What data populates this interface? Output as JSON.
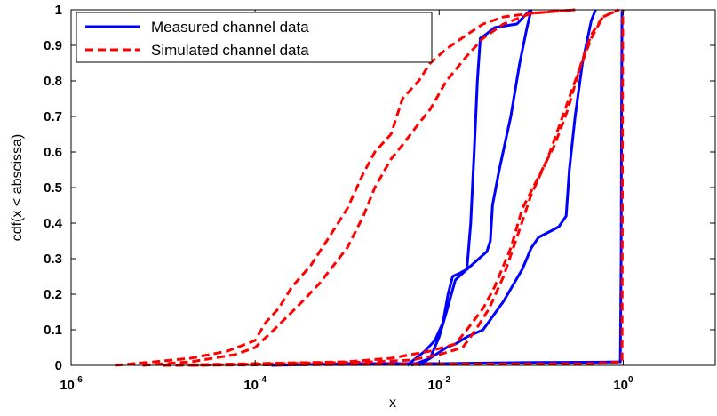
{
  "chart_data": {
    "type": "line",
    "xscale": "log",
    "xlim": [
      1e-06,
      10
    ],
    "ylim": [
      0,
      1
    ],
    "xlabel": "x",
    "ylabel": "cdf(x < abscissa)",
    "x_ticks": [
      {
        "base": "10",
        "exp": "-6",
        "value": 1e-06
      },
      {
        "base": "10",
        "exp": "-4",
        "value": 0.0001
      },
      {
        "base": "10",
        "exp": "-2",
        "value": 0.01
      },
      {
        "base": "10",
        "exp": "0",
        "value": 1
      }
    ],
    "y_ticks": [
      "0",
      "0.1",
      "0.2",
      "0.3",
      "0.4",
      "0.5",
      "0.6",
      "0.7",
      "0.8",
      "0.9",
      "1"
    ],
    "legend": {
      "placement": "top-left",
      "entries": [
        {
          "label": "Measured channel data",
          "color": "#0000ff",
          "style": "solid"
        },
        {
          "label": "Simulated channel data",
          "color": "#ff0000",
          "style": "dashed"
        }
      ]
    },
    "grid": false,
    "series": [
      {
        "group": "measured",
        "color": "#0000ff",
        "dash": "solid",
        "points": [
          [
            0.0045,
            0
          ],
          [
            0.005,
            0.01
          ],
          [
            0.007,
            0.04
          ],
          [
            0.009,
            0.07
          ],
          [
            0.011,
            0.12
          ],
          [
            0.0125,
            0.2
          ],
          [
            0.014,
            0.25
          ],
          [
            0.017,
            0.26
          ],
          [
            0.02,
            0.27
          ],
          [
            0.022,
            0.4
          ],
          [
            0.024,
            0.6
          ],
          [
            0.026,
            0.8
          ],
          [
            0.028,
            0.92
          ],
          [
            0.032,
            0.93
          ],
          [
            0.04,
            0.95
          ],
          [
            0.07,
            0.96
          ],
          [
            0.09,
            0.99
          ],
          [
            0.1,
            1
          ]
        ]
      },
      {
        "group": "measured",
        "color": "#0000ff",
        "dash": "solid",
        "points": [
          [
            0.006,
            0
          ],
          [
            0.008,
            0.02
          ],
          [
            0.01,
            0.08
          ],
          [
            0.012,
            0.15
          ],
          [
            0.015,
            0.24
          ],
          [
            0.02,
            0.27
          ],
          [
            0.027,
            0.3
          ],
          [
            0.033,
            0.32
          ],
          [
            0.036,
            0.35
          ],
          [
            0.038,
            0.45
          ],
          [
            0.045,
            0.55
          ],
          [
            0.06,
            0.7
          ],
          [
            0.075,
            0.85
          ],
          [
            0.09,
            0.95
          ],
          [
            0.1,
            1
          ]
        ]
      },
      {
        "group": "measured",
        "color": "#0000ff",
        "dash": "solid",
        "points": [
          [
            0.005,
            0
          ],
          [
            0.008,
            0.02
          ],
          [
            0.012,
            0.05
          ],
          [
            0.015,
            0.06
          ],
          [
            0.02,
            0.08
          ],
          [
            0.03,
            0.1
          ],
          [
            0.05,
            0.18
          ],
          [
            0.08,
            0.27
          ],
          [
            0.1,
            0.33
          ],
          [
            0.12,
            0.36
          ],
          [
            0.17,
            0.38
          ],
          [
            0.2,
            0.39
          ],
          [
            0.24,
            0.42
          ],
          [
            0.26,
            0.55
          ],
          [
            0.3,
            0.7
          ],
          [
            0.36,
            0.85
          ],
          [
            0.45,
            0.97
          ],
          [
            0.5,
            1
          ]
        ]
      },
      {
        "group": "measured",
        "color": "#0000ff",
        "dash": "solid",
        "points": [
          [
            0.00015,
            0
          ],
          [
            0.001,
            0.005
          ],
          [
            0.01,
            0.005
          ],
          [
            0.1,
            0.008
          ],
          [
            0.6,
            0.009
          ],
          [
            0.93,
            0.01
          ],
          [
            0.95,
            0.3
          ],
          [
            0.96,
            0.72
          ],
          [
            0.97,
            0.995
          ],
          [
            1.0,
            1
          ]
        ]
      },
      {
        "group": "simulated",
        "color": "#ff0000",
        "dash": "dashed",
        "points": [
          [
            3e-06,
            0
          ],
          [
            8e-06,
            0.01
          ],
          [
            2e-05,
            0.02
          ],
          [
            5e-05,
            0.04
          ],
          [
            0.0001,
            0.07
          ],
          [
            0.00013,
            0.12
          ],
          [
            0.00018,
            0.16
          ],
          [
            0.00025,
            0.22
          ],
          [
            0.0004,
            0.28
          ],
          [
            0.0006,
            0.35
          ],
          [
            0.001,
            0.44
          ],
          [
            0.0015,
            0.54
          ],
          [
            0.002,
            0.6
          ],
          [
            0.003,
            0.65
          ],
          [
            0.004,
            0.75
          ],
          [
            0.006,
            0.8
          ],
          [
            0.008,
            0.85
          ],
          [
            0.012,
            0.89
          ],
          [
            0.02,
            0.93
          ],
          [
            0.03,
            0.96
          ],
          [
            0.05,
            0.98
          ],
          [
            0.1,
            0.99
          ],
          [
            0.3,
            1
          ]
        ]
      },
      {
        "group": "simulated",
        "color": "#ff0000",
        "dash": "dashed",
        "points": [
          [
            6e-06,
            0
          ],
          [
            2e-05,
            0.01
          ],
          [
            6e-05,
            0.03
          ],
          [
            0.0001,
            0.05
          ],
          [
            0.00016,
            0.1
          ],
          [
            0.0003,
            0.17
          ],
          [
            0.0005,
            0.23
          ],
          [
            0.001,
            0.33
          ],
          [
            0.0015,
            0.42
          ],
          [
            0.002,
            0.5
          ],
          [
            0.003,
            0.58
          ],
          [
            0.004,
            0.62
          ],
          [
            0.006,
            0.68
          ],
          [
            0.008,
            0.72
          ],
          [
            0.012,
            0.8
          ],
          [
            0.02,
            0.87
          ],
          [
            0.03,
            0.92
          ],
          [
            0.05,
            0.96
          ],
          [
            0.1,
            0.99
          ],
          [
            0.3,
            1
          ]
        ]
      },
      {
        "group": "simulated",
        "color": "#ff0000",
        "dash": "dashed",
        "points": [
          [
            1e-05,
            0
          ],
          [
            0.0001,
            0.005
          ],
          [
            0.001,
            0.01
          ],
          [
            0.003,
            0.02
          ],
          [
            0.008,
            0.04
          ],
          [
            0.015,
            0.06
          ],
          [
            0.02,
            0.1
          ],
          [
            0.03,
            0.16
          ],
          [
            0.04,
            0.22
          ],
          [
            0.06,
            0.33
          ],
          [
            0.08,
            0.44
          ],
          [
            0.12,
            0.53
          ],
          [
            0.18,
            0.62
          ],
          [
            0.25,
            0.72
          ],
          [
            0.35,
            0.85
          ],
          [
            0.45,
            0.93
          ],
          [
            0.6,
            0.98
          ],
          [
            0.9,
            1
          ]
        ]
      },
      {
        "group": "simulated",
        "color": "#ff0000",
        "dash": "dashed",
        "points": [
          [
            2e-05,
            0
          ],
          [
            0.0002,
            0.005
          ],
          [
            0.002,
            0.01
          ],
          [
            0.005,
            0.015
          ],
          [
            0.01,
            0.03
          ],
          [
            0.018,
            0.05
          ],
          [
            0.025,
            0.1
          ],
          [
            0.035,
            0.16
          ],
          [
            0.05,
            0.25
          ],
          [
            0.07,
            0.36
          ],
          [
            0.1,
            0.48
          ],
          [
            0.15,
            0.58
          ],
          [
            0.2,
            0.67
          ],
          [
            0.3,
            0.8
          ],
          [
            0.45,
            0.92
          ],
          [
            0.6,
            0.98
          ],
          [
            0.9,
            1
          ]
        ]
      },
      {
        "group": "simulated",
        "color": "#ff0000",
        "dash": "dashed",
        "points": [
          [
            1e-05,
            0
          ],
          [
            0.5,
            0.005
          ],
          [
            0.97,
            0.01
          ],
          [
            0.98,
            0.5
          ],
          [
            0.99,
            1
          ]
        ]
      }
    ]
  }
}
